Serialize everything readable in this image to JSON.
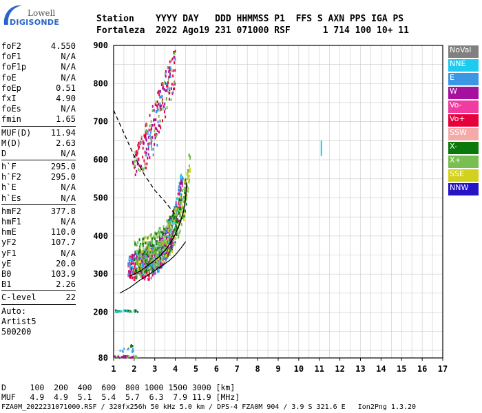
{
  "logo": {
    "line1": "Lowell",
    "line2": "DIGISONDE"
  },
  "header": {
    "line1": "Station    YYYY DAY   DDD HHMMSS P1  FFS S AXN PPS IGA PS",
    "line2": "Fortaleza  2022 Ago19 231 071000 RSF      1 714 100 10+ 11"
  },
  "params": {
    "group1": [
      [
        "foF2",
        "4.550"
      ],
      [
        "foF1",
        "N/A"
      ],
      [
        "foF1p",
        "N/A"
      ],
      [
        "foE",
        "N/A"
      ],
      [
        "foEp",
        "0.51"
      ],
      [
        "fxI",
        "4.90"
      ],
      [
        "foEs",
        "N/A"
      ],
      [
        "fmin",
        "1.65"
      ]
    ],
    "group2": [
      [
        "MUF(D)",
        "11.94"
      ],
      [
        "M(D)",
        "2.63"
      ],
      [
        "D",
        "N/A"
      ]
    ],
    "group3": [
      [
        "h`F",
        "295.0"
      ],
      [
        "h`F2",
        "295.0"
      ],
      [
        "h`E",
        "N/A"
      ],
      [
        "h`Es",
        "N/A"
      ]
    ],
    "group4": [
      [
        "hmF2",
        "377.8"
      ],
      [
        "hmF1",
        "N/A"
      ],
      [
        "hmE",
        "110.0"
      ],
      [
        "yF2",
        "107.7"
      ],
      [
        "yF1",
        "N/A"
      ],
      [
        "yE",
        "20.0"
      ],
      [
        "B0",
        "103.9"
      ],
      [
        "B1",
        "2.26"
      ]
    ],
    "group5": [
      [
        "C-level",
        "22"
      ]
    ],
    "auto": "Auto:",
    "artist": "Artist5",
    "code": "500200"
  },
  "legend": [
    {
      "label": "NoVal",
      "color": "#808080"
    },
    {
      "label": "NNE",
      "color": "#1ecaf0"
    },
    {
      "label": "E",
      "color": "#3c96e6"
    },
    {
      "label": "W",
      "color": "#a5109e"
    },
    {
      "label": "Vo-",
      "color": "#f03ca0"
    },
    {
      "label": "Vo+",
      "color": "#e6003c"
    },
    {
      "label": "SSW",
      "color": "#f5aaaa"
    },
    {
      "label": "X-",
      "color": "#0a780a"
    },
    {
      "label": "X+",
      "color": "#78be50"
    },
    {
      "label": "SSE",
      "color": "#d2d21e"
    },
    {
      "label": "NNW",
      "color": "#2814c8"
    }
  ],
  "footer": {
    "d_line": "D     100  200  400  600  800 1000 1500 3000 [km]",
    "muf_line": "MUF   4.9  4.9  5.1  5.4  5.7  6.3  7.9 11.9 [MHz]",
    "file_line": "FZA0M_2022231071000.RSF / 320fx256h 50 kHz 5.0 km / DPS-4 FZA0M 904 / 3.9 S 321.6 E   Ion2Png 1.3.20"
  },
  "chart_data": {
    "type": "scatter",
    "xlim": [
      1,
      17
    ],
    "ylim": [
      80,
      900
    ],
    "x_ticks": [
      1,
      2,
      3,
      4,
      5,
      6,
      7,
      8,
      9,
      10,
      11,
      12,
      13,
      14,
      15,
      16,
      17
    ],
    "y_ticks": [
      80,
      200,
      300,
      400,
      500,
      600,
      700,
      800,
      900
    ],
    "grid": true,
    "traces": {
      "o_trace": [
        [
          1.8,
          295
        ],
        [
          2.0,
          300
        ],
        [
          2.3,
          308
        ],
        [
          2.6,
          320
        ],
        [
          2.9,
          332
        ],
        [
          3.2,
          345
        ],
        [
          3.5,
          362
        ],
        [
          3.8,
          385
        ],
        [
          4.0,
          405
        ],
        [
          4.2,
          430
        ],
        [
          4.4,
          465
        ],
        [
          4.5,
          500
        ],
        [
          4.55,
          540
        ]
      ],
      "true_height": [
        [
          1.3,
          250
        ],
        [
          1.8,
          265
        ],
        [
          2.3,
          285
        ],
        [
          2.8,
          302
        ],
        [
          3.3,
          320
        ],
        [
          3.7,
          335
        ],
        [
          4.0,
          350
        ],
        [
          4.3,
          370
        ],
        [
          4.5,
          385
        ]
      ],
      "muf_curve": [
        [
          1.0,
          730
        ],
        [
          1.5,
          670
        ],
        [
          2.0,
          610
        ],
        [
          2.5,
          560
        ],
        [
          3.0,
          520
        ],
        [
          3.5,
          490
        ],
        [
          3.8,
          470
        ],
        [
          4.0,
          455
        ]
      ]
    },
    "clusters": [
      {
        "color": "#e6003c",
        "x": [
          1.7,
          4.6
        ],
        "y": [
          285,
          520
        ],
        "n": 260,
        "band": "o"
      },
      {
        "color": "#f03ca0",
        "x": [
          1.7,
          4.6
        ],
        "y": [
          285,
          540
        ],
        "n": 120,
        "band": "o"
      },
      {
        "color": "#3c96e6",
        "x": [
          1.7,
          4.7
        ],
        "y": [
          300,
          560
        ],
        "n": 220,
        "band": "o"
      },
      {
        "color": "#1ecaf0",
        "x": [
          1.7,
          4.7
        ],
        "y": [
          300,
          560
        ],
        "n": 130,
        "band": "o"
      },
      {
        "color": "#a5109e",
        "x": [
          1.8,
          4.7
        ],
        "y": [
          300,
          580
        ],
        "n": 160,
        "band": "o"
      },
      {
        "color": "#0a780a",
        "x": [
          2.0,
          4.9
        ],
        "y": [
          280,
          560
        ],
        "n": 200,
        "band": "x"
      },
      {
        "color": "#78be50",
        "x": [
          2.0,
          4.9
        ],
        "y": [
          280,
          620
        ],
        "n": 240,
        "band": "x"
      },
      {
        "color": "#d2d21e",
        "x": [
          2.0,
          4.9
        ],
        "y": [
          290,
          640
        ],
        "n": 60,
        "band": "x"
      },
      {
        "color": "#e6003c",
        "x": [
          1.9,
          4.0
        ],
        "y": [
          560,
          900
        ],
        "n": 110,
        "band": "m"
      },
      {
        "color": "#a5109e",
        "x": [
          1.9,
          4.0
        ],
        "y": [
          560,
          900
        ],
        "n": 60,
        "band": "m"
      },
      {
        "color": "#78be50",
        "x": [
          1.9,
          4.0
        ],
        "y": [
          560,
          900
        ],
        "n": 50,
        "band": "m"
      },
      {
        "color": "#3c96e6",
        "x": [
          2.2,
          4.0
        ],
        "y": [
          600,
          900
        ],
        "n": 40,
        "band": "m"
      },
      {
        "color": "#0a780a",
        "x": [
          1.0,
          2.2
        ],
        "y": [
          200,
          205
        ],
        "n": 25,
        "band": "flat"
      },
      {
        "color": "#1ecaf0",
        "x": [
          1.0,
          2.0
        ],
        "y": [
          200,
          204
        ],
        "n": 10,
        "band": "flat"
      },
      {
        "color": "#78be50",
        "x": [
          1.0,
          2.2
        ],
        "y": [
          80,
          86
        ],
        "n": 30,
        "band": "flat"
      },
      {
        "color": "#a5109e",
        "x": [
          1.0,
          2.0
        ],
        "y": [
          80,
          85
        ],
        "n": 18,
        "band": "flat"
      },
      {
        "color": "#3c96e6",
        "x": [
          1.3,
          2.0
        ],
        "y": [
          95,
          105
        ],
        "n": 10,
        "band": "flat"
      },
      {
        "color": "#0a780a",
        "x": [
          1.8,
          2.0
        ],
        "y": [
          105,
          115
        ],
        "n": 6,
        "band": "flat"
      }
    ],
    "outlier": {
      "x": 11.1,
      "y": [
        610,
        650
      ],
      "color": "#1ecaf0"
    }
  }
}
